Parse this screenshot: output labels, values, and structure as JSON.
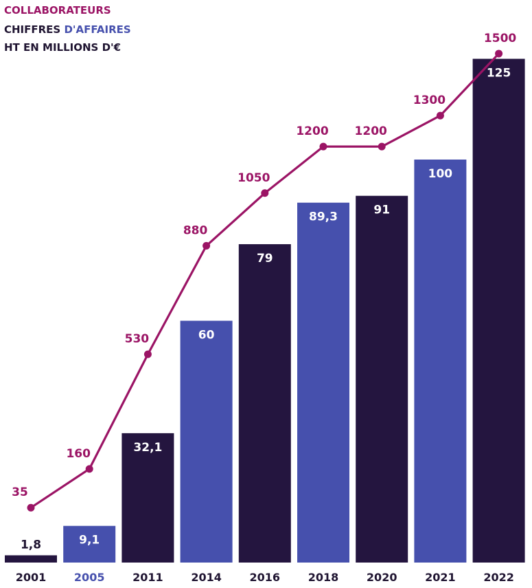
{
  "legend": {
    "collaborateurs": "COLLABORATEURS",
    "ca_prefix": "CHIFFRES ",
    "ca_accent": "D'AFFAIRES",
    "ht": "HT EN MILLIONS D'€"
  },
  "colors": {
    "bar_dark": "#24153f",
    "bar_blue": "#4650ad",
    "line": "#9b1465",
    "text_dark": "#1f1431",
    "year_highlight": "#4650ad",
    "bar_label": "#ffffff"
  },
  "chart_data": {
    "type": "bar",
    "categories": [
      "2001",
      "2005",
      "2011",
      "2014",
      "2016",
      "2018",
      "2020",
      "2021",
      "2022"
    ],
    "series": [
      {
        "name": "CHIFFRES D'AFFAIRES HT EN MILLIONS D'€",
        "type": "bar",
        "values": [
          1.8,
          9.1,
          32.1,
          60,
          79,
          89.3,
          91,
          100,
          125
        ],
        "labels": [
          "1,8",
          "9,1",
          "32,1",
          "60",
          "79",
          "89,3",
          "91",
          "100",
          "125"
        ],
        "bar_colors": [
          "dark",
          "blue",
          "dark",
          "blue",
          "dark",
          "blue",
          "dark",
          "blue",
          "dark"
        ]
      },
      {
        "name": "COLLABORATEURS",
        "type": "line",
        "values": [
          35,
          160,
          530,
          880,
          1050,
          1200,
          1200,
          1300,
          1500
        ],
        "labels": [
          "35",
          "160",
          "530",
          "880",
          "1050",
          "1200",
          "1200",
          "1300",
          "1500"
        ]
      }
    ],
    "highlighted_category": "2005",
    "grid": false,
    "axes_visible": false,
    "legend_position": "top-left"
  }
}
